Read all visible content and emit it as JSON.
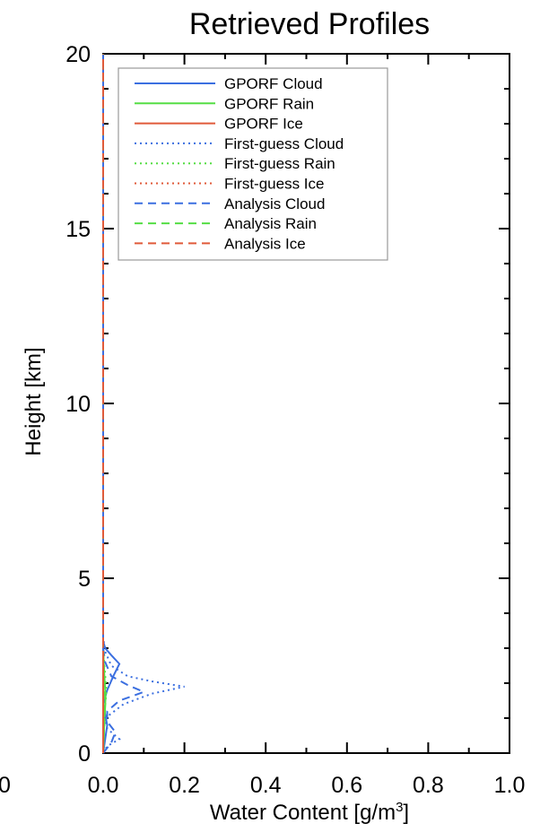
{
  "chart_data": {
    "type": "line",
    "title": "Retrieved Profiles",
    "xlabel": "Water Content [g/m",
    "xlabel_superscript": "3",
    "xlabel_suffix": "]",
    "ylabel": "Height [km]",
    "xlim": [
      0.0,
      1.0
    ],
    "ylim": [
      0,
      20
    ],
    "x_ticks": [
      "0.0",
      "0.2",
      "0.4",
      "0.6",
      "0.8",
      "1.0"
    ],
    "x_tick_values": [
      0.0,
      0.2,
      0.4,
      0.6,
      0.8,
      1.0
    ],
    "y_ticks": [
      "0",
      "5",
      "10",
      "15",
      "20"
    ],
    "y_tick_values": [
      0,
      5,
      10,
      15,
      20
    ],
    "edge_label": "0",
    "grid": false,
    "legend_position": "top-left",
    "series": [
      {
        "name": "GPORF Cloud",
        "color": "#3b6fe0",
        "dash": "solid",
        "points": [
          [
            0.0,
            0.0
          ],
          [
            0.005,
            0.4
          ],
          [
            0.01,
            0.8
          ],
          [
            0.005,
            1.1
          ],
          [
            0.0,
            1.4
          ],
          [
            0.01,
            1.8
          ],
          [
            0.025,
            2.2
          ],
          [
            0.04,
            2.55
          ],
          [
            0.02,
            2.8
          ],
          [
            0.005,
            3.0
          ],
          [
            0.0,
            3.2
          ],
          [
            0.0,
            20.0
          ]
        ]
      },
      {
        "name": "GPORF Rain",
        "color": "#55dd44",
        "dash": "solid",
        "points": [
          [
            0.0,
            0.0
          ],
          [
            0.003,
            1.0
          ],
          [
            0.006,
            1.6
          ],
          [
            0.002,
            2.4
          ],
          [
            0.0,
            3.0
          ],
          [
            0.0,
            20.0
          ]
        ]
      },
      {
        "name": "GPORF Ice",
        "color": "#e05a3a",
        "dash": "solid",
        "points": [
          [
            0.0,
            0.0
          ],
          [
            0.0,
            20.0
          ]
        ]
      },
      {
        "name": "First-guess Cloud",
        "color": "#3b6fe0",
        "dash": "dotted",
        "points": [
          [
            0.0,
            0.0
          ],
          [
            0.01,
            0.2
          ],
          [
            0.04,
            0.4
          ],
          [
            0.01,
            0.7
          ],
          [
            0.005,
            1.0
          ],
          [
            0.05,
            1.4
          ],
          [
            0.12,
            1.7
          ],
          [
            0.2,
            1.9
          ],
          [
            0.12,
            2.05
          ],
          [
            0.06,
            2.2
          ],
          [
            0.02,
            2.5
          ],
          [
            0.005,
            2.9
          ],
          [
            0.0,
            3.3
          ],
          [
            0.0,
            20.0
          ]
        ]
      },
      {
        "name": "First-guess Rain",
        "color": "#55dd44",
        "dash": "dotted",
        "points": [
          [
            0.0,
            0.0
          ],
          [
            0.004,
            1.2
          ],
          [
            0.008,
            1.8
          ],
          [
            0.003,
            2.5
          ],
          [
            0.0,
            3.0
          ],
          [
            0.0,
            20.0
          ]
        ]
      },
      {
        "name": "First-guess Ice",
        "color": "#e05a3a",
        "dash": "dotted",
        "points": [
          [
            0.0,
            0.0
          ],
          [
            0.0,
            20.0
          ]
        ]
      },
      {
        "name": "Analysis Cloud",
        "color": "#3b6fe0",
        "dash": "dashed",
        "points": [
          [
            0.0,
            0.0
          ],
          [
            0.02,
            0.3
          ],
          [
            0.03,
            0.6
          ],
          [
            0.01,
            0.9
          ],
          [
            0.01,
            1.2
          ],
          [
            0.04,
            1.5
          ],
          [
            0.1,
            1.75
          ],
          [
            0.06,
            1.95
          ],
          [
            0.02,
            2.2
          ],
          [
            0.005,
            2.6
          ],
          [
            0.0,
            3.0
          ],
          [
            0.0,
            20.0
          ]
        ]
      },
      {
        "name": "Analysis Rain",
        "color": "#55dd44",
        "dash": "dashed",
        "points": [
          [
            0.0,
            0.0
          ],
          [
            0.005,
            1.4
          ],
          [
            0.003,
            2.2
          ],
          [
            0.0,
            3.0
          ],
          [
            0.0,
            20.0
          ]
        ]
      },
      {
        "name": "Analysis Ice",
        "color": "#e05a3a",
        "dash": "dashed",
        "points": [
          [
            0.0,
            0.0
          ],
          [
            0.0,
            20.0
          ]
        ]
      }
    ]
  }
}
